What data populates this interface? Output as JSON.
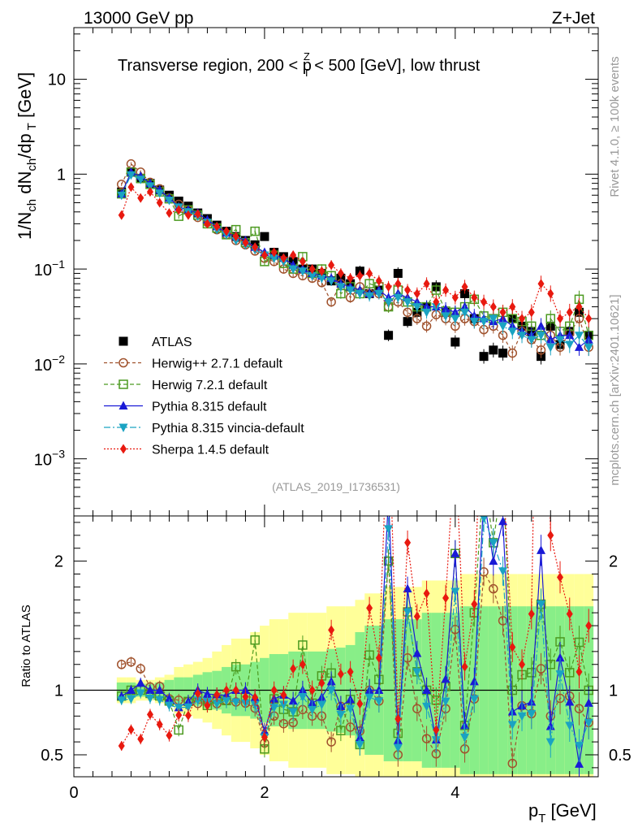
{
  "header": {
    "left": "13000 GeV pp",
    "right": "Z+Jet"
  },
  "title_parts": {
    "a": "Transverse region, 200 < p",
    "sup": "Z",
    "sub": "T",
    "b": " < 500 [GeV], low thrust"
  },
  "side_text": {
    "rivet": "Rivet 4.1.0, ≥ 100k events",
    "mcplots": "mcplots.cern.ch [arXiv:2401.10621]"
  },
  "analysis_id": "(ATLAS_2019_I1736531)",
  "ylabel_main": "1/N_ch dN_ch/dp_T [GeV]",
  "ylabel_ratio": "Ratio to ATLAS",
  "xlabel": "p_T [GeV]",
  "colors": {
    "atlas": "#000000",
    "herwigpp": "#a0522d",
    "herwig7": "#4c9a20",
    "pythia": "#1a1ad6",
    "vincia": "#1aa3c2",
    "sherpa": "#e8190f",
    "band_yellow": "#ffff99",
    "band_green": "#88ee88"
  },
  "chart_data": [
    {
      "type": "scatter",
      "scale": "log",
      "title": "Transverse region, 200 < p_T^Z < 500 [GeV], low thrust",
      "xlabel": "p_T [GeV]",
      "ylabel": "1/N_ch dN_ch/dp_T [GeV]",
      "xlim": [
        0,
        5.5
      ],
      "ylim": [
        0.00025,
        35
      ],
      "y_ticks": [
        "10^-3",
        "10^-2",
        "10^-1",
        "1",
        "10"
      ],
      "legend": {
        "location": "lower-left",
        "entries": [
          "ATLAS",
          "Herwig++ 2.7.1 default",
          "Herwig 7.2.1 default",
          "Pythia 8.315 default",
          "Pythia 8.315 vincia-default",
          "Sherpa 1.4.5 default"
        ]
      },
      "x": [
        0.5,
        0.6,
        0.7,
        0.8,
        0.9,
        1.0,
        1.1,
        1.2,
        1.3,
        1.4,
        1.5,
        1.6,
        1.7,
        1.8,
        1.9,
        2.0,
        2.1,
        2.2,
        2.3,
        2.4,
        2.5,
        2.6,
        2.7,
        2.8,
        2.9,
        3.0,
        3.1,
        3.2,
        3.3,
        3.4,
        3.5,
        3.6,
        3.7,
        3.8,
        3.9,
        4.0,
        4.1,
        4.2,
        4.3,
        4.4,
        4.5,
        4.6,
        4.7,
        4.8,
        4.9,
        5.0,
        5.1,
        5.2,
        5.3,
        5.4
      ],
      "series": [
        {
          "name": "ATLAS",
          "marker": "square-filled",
          "values": [
            0.65,
            1.05,
            0.9,
            0.8,
            0.68,
            0.6,
            0.52,
            0.46,
            0.39,
            0.34,
            0.29,
            0.25,
            0.22,
            0.2,
            0.18,
            0.22,
            0.15,
            0.135,
            0.12,
            0.1,
            0.1,
            0.09,
            0.075,
            0.08,
            0.07,
            0.095,
            0.055,
            0.06,
            0.02,
            0.09,
            0.028,
            0.035,
            0.04,
            0.065,
            0.035,
            0.017,
            0.055,
            0.03,
            0.012,
            0.014,
            0.013,
            0.03,
            0.025,
            0.022,
            0.012,
            0.025,
            0.016,
            0.022,
            0.035,
            0.02
          ]
        },
        {
          "name": "Herwig++ 2.7.1 default",
          "marker": "circle-open",
          "values": [
            0.78,
            1.28,
            1.05,
            0.82,
            0.7,
            0.56,
            0.48,
            0.42,
            0.35,
            0.31,
            0.26,
            0.23,
            0.2,
            0.18,
            0.155,
            0.13,
            0.12,
            0.1,
            0.09,
            0.085,
            0.08,
            0.072,
            0.045,
            0.07,
            0.05,
            0.065,
            0.055,
            0.055,
            0.04,
            0.045,
            0.035,
            0.03,
            0.025,
            0.033,
            0.03,
            0.025,
            0.03,
            0.028,
            0.023,
            0.025,
            0.02,
            0.013,
            0.022,
            0.018,
            0.014,
            0.02,
            0.015,
            0.021,
            0.03,
            0.015
          ]
        },
        {
          "name": "Herwig 7.2.1 default",
          "marker": "square-open",
          "values": [
            0.62,
            1.05,
            0.9,
            0.78,
            0.65,
            0.55,
            0.36,
            0.42,
            0.37,
            0.3,
            0.27,
            0.23,
            0.26,
            0.19,
            0.25,
            0.12,
            0.14,
            0.115,
            0.1,
            0.135,
            0.09,
            0.1,
            0.085,
            0.055,
            0.065,
            0.055,
            0.07,
            0.065,
            0.04,
            0.06,
            0.045,
            0.04,
            0.04,
            0.06,
            0.036,
            0.035,
            0.04,
            0.048,
            0.032,
            0.03,
            0.035,
            0.03,
            0.028,
            0.025,
            0.02,
            0.03,
            0.022,
            0.025,
            0.048,
            0.02
          ]
        },
        {
          "name": "Pythia 8.315 default",
          "marker": "triangle-up",
          "values": [
            0.62,
            1.05,
            0.95,
            0.8,
            0.68,
            0.56,
            0.45,
            0.42,
            0.39,
            0.33,
            0.28,
            0.24,
            0.22,
            0.2,
            0.17,
            0.15,
            0.14,
            0.13,
            0.11,
            0.1,
            0.09,
            0.085,
            0.08,
            0.07,
            0.065,
            0.06,
            0.055,
            0.06,
            0.05,
            0.055,
            0.05,
            0.045,
            0.04,
            0.04,
            0.038,
            0.035,
            0.04,
            0.032,
            0.03,
            0.028,
            0.03,
            0.025,
            0.022,
            0.02,
            0.025,
            0.018,
            0.02,
            0.02,
            0.015,
            0.018
          ]
        },
        {
          "name": "Pythia 8.315 vincia-default",
          "marker": "triangle-down",
          "values": [
            0.6,
            0.98,
            0.88,
            0.75,
            0.63,
            0.53,
            0.45,
            0.4,
            0.36,
            0.31,
            0.26,
            0.23,
            0.2,
            0.18,
            0.16,
            0.14,
            0.13,
            0.12,
            0.1,
            0.095,
            0.085,
            0.08,
            0.075,
            0.065,
            0.06,
            0.055,
            0.052,
            0.055,
            0.045,
            0.05,
            0.045,
            0.04,
            0.035,
            0.04,
            0.032,
            0.03,
            0.035,
            0.028,
            0.028,
            0.03,
            0.025,
            0.022,
            0.02,
            0.018,
            0.02,
            0.015,
            0.018,
            0.016,
            0.02,
            0.015
          ]
        },
        {
          "name": "Sherpa 1.4.5 default",
          "marker": "diamond-filled",
          "values": [
            0.37,
            0.73,
            0.56,
            0.65,
            0.5,
            0.39,
            0.42,
            0.37,
            0.38,
            0.3,
            0.28,
            0.25,
            0.22,
            0.19,
            0.17,
            0.14,
            0.15,
            0.13,
            0.14,
            0.12,
            0.1,
            0.095,
            0.11,
            0.09,
            0.08,
            0.085,
            0.09,
            0.075,
            0.065,
            0.07,
            0.06,
            0.055,
            0.07,
            0.045,
            0.06,
            0.05,
            0.065,
            0.05,
            0.045,
            0.04,
            0.035,
            0.04,
            0.03,
            0.035,
            0.07,
            0.055,
            0.03,
            0.035,
            0.04,
            0.03
          ]
        }
      ]
    },
    {
      "type": "scatter",
      "title": "",
      "xlabel": "p_T [GeV]",
      "ylabel": "Ratio to ATLAS",
      "xlim": [
        0,
        5.5
      ],
      "ylim": [
        0.33,
        2.35
      ],
      "x_ticks": [
        0,
        2,
        4
      ],
      "y_ticks": [
        0.5,
        1,
        2
      ],
      "reference_line": 1,
      "bands": {
        "yellow_halfwidth": [
          0.1,
          0.1,
          0.08,
          0.08,
          0.1,
          0.12,
          0.18,
          0.2,
          0.22,
          0.25,
          0.3,
          0.35,
          0.4,
          0.4,
          0.45,
          0.5,
          0.55,
          0.55,
          0.6,
          0.6,
          0.6,
          0.6,
          0.65,
          0.65,
          0.65,
          0.7,
          0.75,
          0.75,
          0.8,
          0.8,
          0.8,
          0.8,
          0.85,
          0.85,
          0.85,
          0.85,
          0.9,
          0.9,
          0.9,
          0.9,
          0.9,
          0.9,
          0.9,
          0.9,
          0.9,
          0.9,
          0.9,
          0.9,
          0.9,
          0.9
        ],
        "green_halfwidth": [
          0.06,
          0.06,
          0.05,
          0.05,
          0.06,
          0.08,
          0.1,
          0.1,
          0.12,
          0.14,
          0.15,
          0.18,
          0.2,
          0.2,
          0.22,
          0.25,
          0.28,
          0.28,
          0.3,
          0.3,
          0.3,
          0.3,
          0.32,
          0.33,
          0.35,
          0.45,
          0.5,
          0.5,
          0.55,
          0.55,
          0.55,
          0.55,
          0.6,
          0.6,
          0.6,
          0.6,
          0.65,
          0.65,
          0.65,
          0.65,
          0.65,
          0.65,
          0.65,
          0.65,
          0.65,
          0.65,
          0.65,
          0.65,
          0.65,
          0.65
        ]
      }
    }
  ]
}
